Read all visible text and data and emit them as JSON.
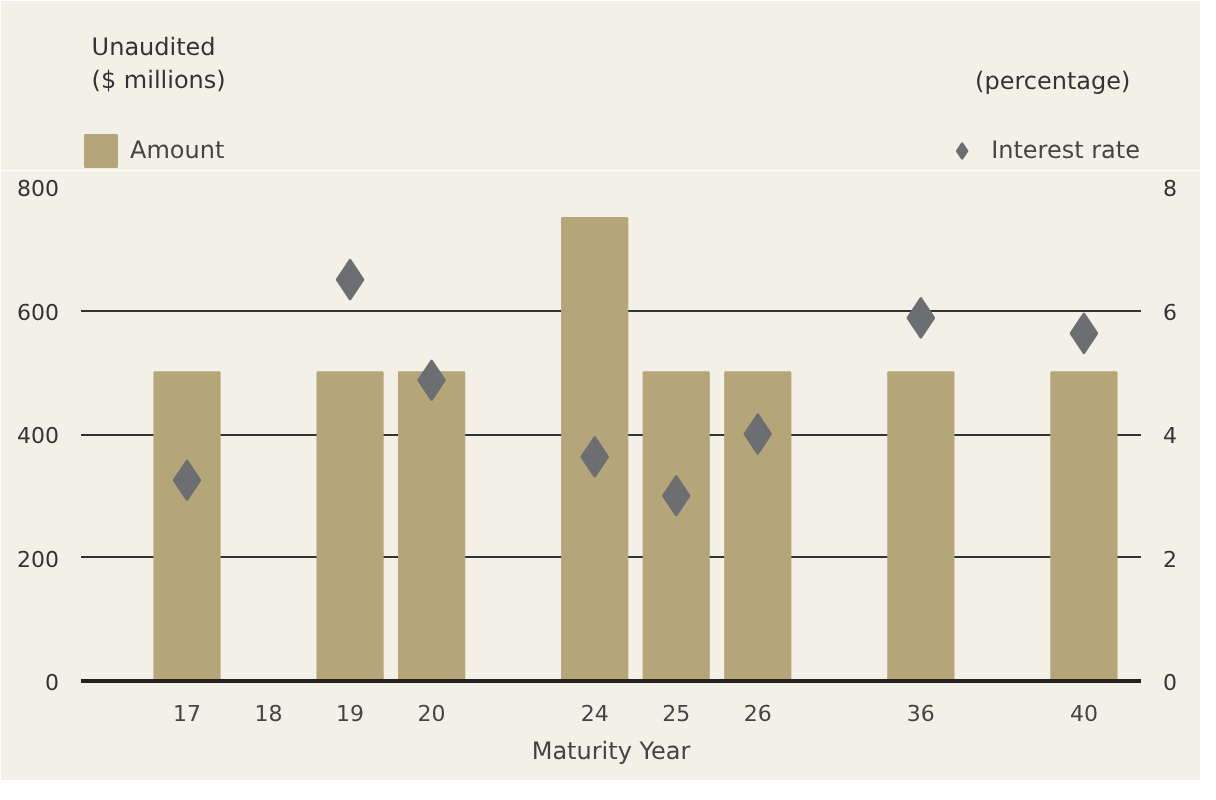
{
  "chart_data": {
    "type": "bar",
    "xlabel": "Maturity Year",
    "ylabel": "Unaudited\n($ millions)",
    "y2label": "(percentage)",
    "categories": [
      "17",
      "18",
      "19",
      "20",
      null,
      "24",
      "25",
      "26",
      null,
      "36",
      null,
      "40"
    ],
    "series": [
      {
        "name": "Amount",
        "color": "#b5a67a",
        "values": [
          500,
          null,
          500,
          500,
          null,
          750,
          500,
          500,
          null,
          500,
          null,
          500
        ]
      },
      {
        "name": "Interest rate",
        "type": "scatter",
        "axis": "y2",
        "marker": "diamond",
        "color": "#6d6e71",
        "values": [
          3.25,
          null,
          6.5,
          4.87,
          null,
          3.63,
          3.0,
          4.0,
          null,
          5.88,
          null,
          5.63
        ]
      }
    ],
    "ylim": [
      0,
      800
    ],
    "yticks": [
      0,
      200,
      400,
      600,
      800
    ],
    "y2lim": [
      0,
      8
    ],
    "y2ticks": [
      0,
      2,
      4,
      6,
      8
    ],
    "grid": "y",
    "legend": "top"
  }
}
